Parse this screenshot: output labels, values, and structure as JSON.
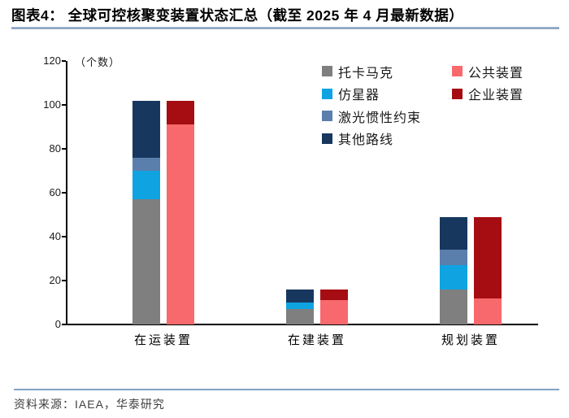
{
  "figure": {
    "title": "图表4：  全球可控核聚变装置状态汇总（截至 2025 年 4 月最新数据）",
    "source": "资料来源：IAEA，华泰研究"
  },
  "colors": {
    "divider_rule": "#84A1C2",
    "axis": "#000000",
    "text": "#1A1A1A"
  },
  "chart_data": {
    "type": "bar",
    "stacked": true,
    "title": "全球可控核聚变装置状态汇总（截至 2025 年 4 月最新数据）",
    "unit_label": "（个数）",
    "xlabel": "",
    "ylabel": "个数",
    "ylim": [
      0,
      120
    ],
    "yticks": [
      0,
      20,
      40,
      60,
      80,
      100,
      120
    ],
    "grid": false,
    "legend_position": "top-right",
    "categories": [
      "在运装置",
      "在建装置",
      "规划装置"
    ],
    "category_ids": [
      "operating",
      "under-construction",
      "planned"
    ],
    "stacks": [
      {
        "id": "tech",
        "series_ids": [
          "tokamak",
          "stellarator",
          "laser-icf",
          "other-route"
        ]
      },
      {
        "id": "ownership",
        "series_ids": [
          "public-device",
          "enterprise-device"
        ]
      }
    ],
    "series": [
      {
        "id": "tokamak",
        "name": "托卡马克",
        "stack": "tech",
        "color": "#7F7F7F",
        "values": [
          57,
          7,
          16
        ]
      },
      {
        "id": "stellarator",
        "name": "仿星器",
        "stack": "tech",
        "color": "#0FA3E2",
        "values": [
          13,
          3,
          11
        ]
      },
      {
        "id": "laser-icf",
        "name": "激光惯性约束",
        "stack": "tech",
        "color": "#5B7FAC",
        "values": [
          6,
          0,
          7
        ]
      },
      {
        "id": "other-route",
        "name": "其他路线",
        "stack": "tech",
        "color": "#17375E",
        "values": [
          26,
          6,
          15
        ]
      },
      {
        "id": "public-device",
        "name": "公共装置",
        "stack": "ownership",
        "color": "#F7696C",
        "values": [
          91,
          11,
          12
        ]
      },
      {
        "id": "enterprise-device",
        "name": "企业装置",
        "stack": "ownership",
        "color": "#A50D12",
        "values": [
          11,
          5,
          37
        ]
      }
    ],
    "stack_totals": [
      102,
      16,
      49
    ]
  }
}
